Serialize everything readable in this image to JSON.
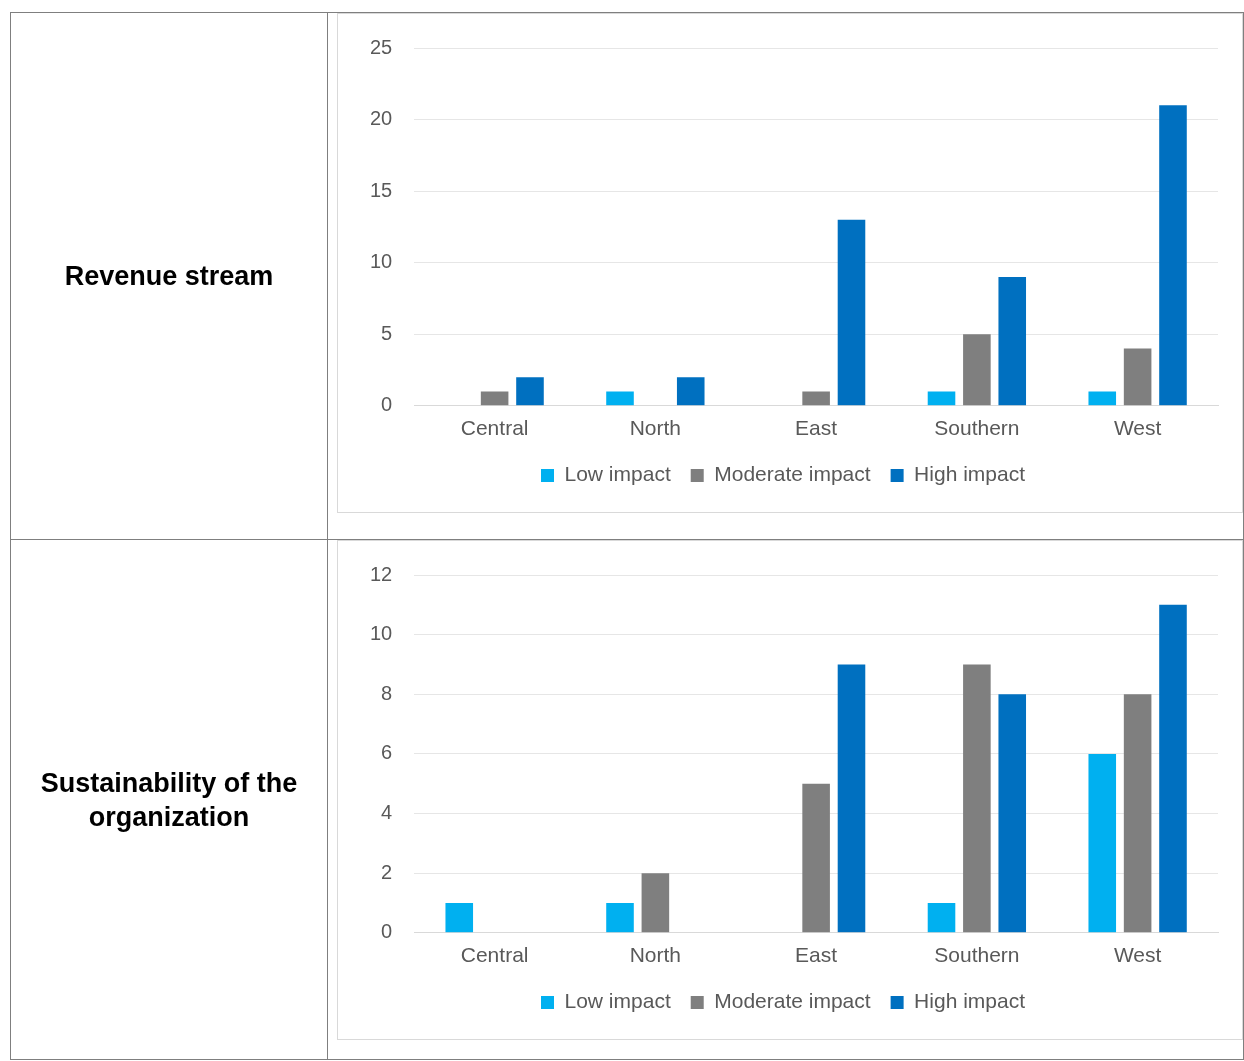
{
  "chart_data": [
    {
      "type": "bar",
      "title": "Revenue stream",
      "categories": [
        "Central",
        "North",
        "East",
        "Southern",
        "West"
      ],
      "series": [
        {
          "name": "Low impact",
          "color": "#00b0f0",
          "values": [
            0,
            1,
            0,
            1,
            1
          ]
        },
        {
          "name": "Moderate impact",
          "color": "#7f7f7f",
          "values": [
            1,
            0,
            1,
            5,
            4
          ]
        },
        {
          "name": "High impact",
          "color": "#0070c0",
          "values": [
            2,
            2,
            13,
            9,
            21
          ]
        }
      ],
      "ylim": [
        0,
        25
      ],
      "yticks": [
        0,
        5,
        10,
        15,
        20,
        25
      ],
      "grid": "y",
      "legend": "bottom"
    },
    {
      "type": "bar",
      "title": "Sustainability of the organization",
      "categories": [
        "Central",
        "North",
        "East",
        "Southern",
        "West"
      ],
      "series": [
        {
          "name": "Low impact",
          "color": "#00b0f0",
          "values": [
            1,
            1,
            0,
            1,
            6
          ]
        },
        {
          "name": "Moderate impact",
          "color": "#7f7f7f",
          "values": [
            0,
            2,
            5,
            9,
            8
          ]
        },
        {
          "name": "High impact",
          "color": "#0070c0",
          "values": [
            0,
            0,
            9,
            8,
            11
          ]
        }
      ],
      "ylim": [
        0,
        12
      ],
      "yticks": [
        0,
        2,
        4,
        6,
        8,
        10,
        12
      ],
      "grid": "y",
      "legend": "bottom"
    }
  ]
}
